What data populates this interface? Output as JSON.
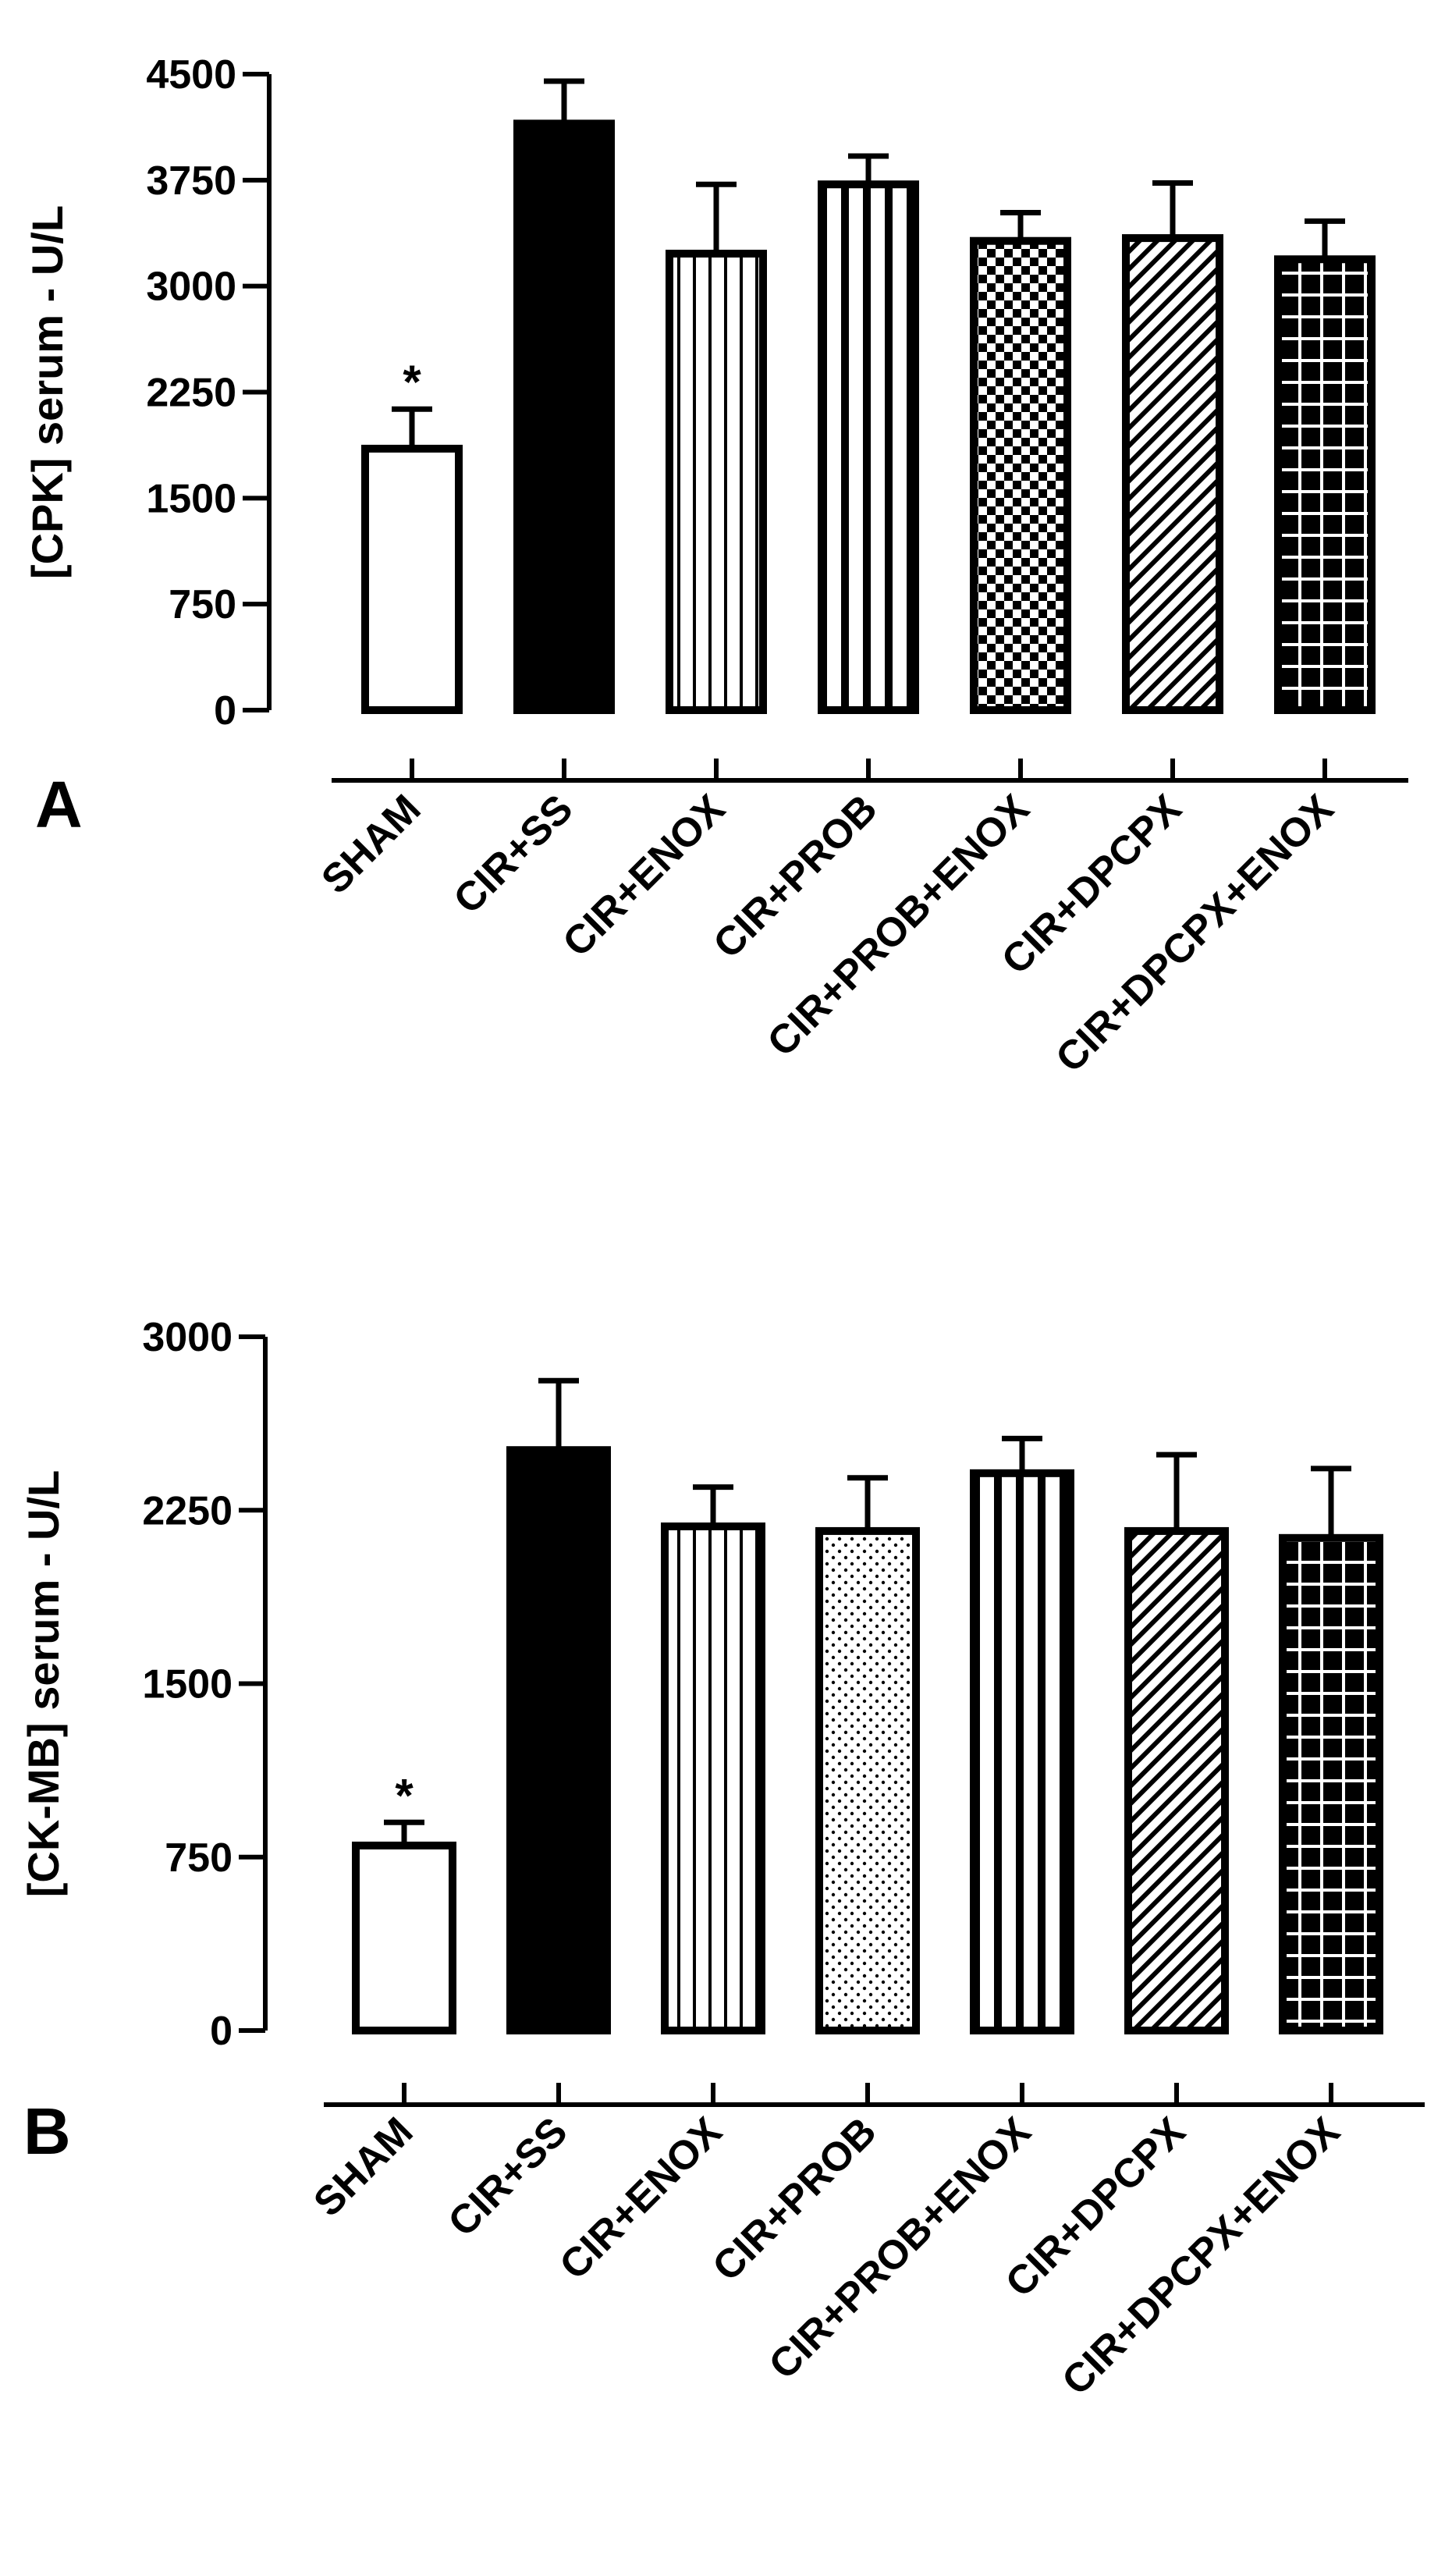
{
  "chart_data": [
    {
      "panel": "A",
      "type": "bar",
      "ylabel": "[CPK] serum - U/L",
      "xlabel": "",
      "ylim": [
        0,
        4500
      ],
      "yticks": [
        "0",
        "750",
        "1500",
        "2250",
        "3000",
        "3750",
        "4500"
      ],
      "grid": false,
      "categories": [
        "SHAM",
        "CIR+SS",
        "CIR+ENOX",
        "CIR+PROB",
        "CIR+PROB+ENOX",
        "CIR+DPCPX",
        "CIR+DPCPX+ENOX"
      ],
      "values": [
        1850,
        4150,
        3230,
        3720,
        3320,
        3340,
        3190
      ],
      "errors": [
        280,
        300,
        490,
        200,
        200,
        390,
        270
      ],
      "fill_patterns": [
        "white",
        "solid",
        "vlines",
        "vlines-thick",
        "checker",
        "diagonal",
        "grid"
      ],
      "annotations": [
        "*",
        "",
        "",
        "",
        "",
        "",
        ""
      ]
    },
    {
      "panel": "B",
      "type": "bar",
      "ylabel": "[CK-MB] serum - U/L",
      "xlabel": "",
      "ylim": [
        0,
        3000
      ],
      "yticks": [
        "0",
        "750",
        "1500",
        "2250",
        "3000"
      ],
      "grid": false,
      "categories": [
        "SHAM",
        "CIR+SS",
        "CIR+ENOX",
        "CIR+PROB",
        "CIR+PROB+ENOX",
        "CIR+DPCPX",
        "CIR+DPCPX+ENOX"
      ],
      "values": [
        800,
        2510,
        2180,
        2160,
        2410,
        2160,
        2130
      ],
      "errors": [
        100,
        300,
        170,
        230,
        150,
        330,
        300
      ],
      "fill_patterns": [
        "white",
        "solid",
        "vlines",
        "dots",
        "vlines-thick",
        "diagonal",
        "grid"
      ],
      "annotations": [
        "*",
        "",
        "",
        "",
        "",
        "",
        ""
      ]
    }
  ]
}
